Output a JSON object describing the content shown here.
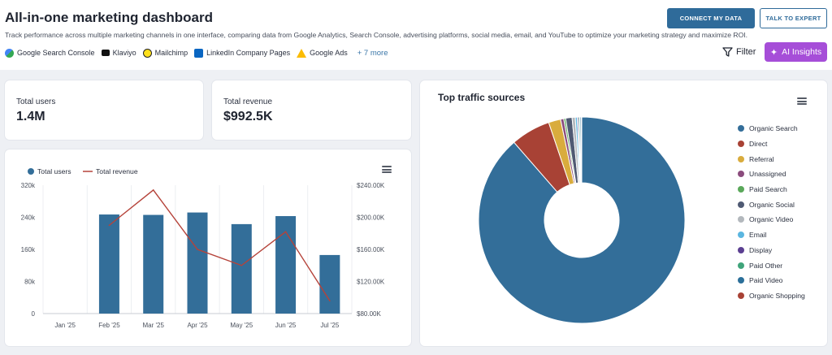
{
  "header": {
    "title": "All-in-one marketing dashboard",
    "subtitle": "Track performance across multiple marketing channels in one interface, comparing data from Google Analytics, Search Console, advertising platforms, social media, email, and YouTube to optimize your marketing strategy and maximize ROI.",
    "sources": [
      {
        "label": "Google Search Console",
        "icon": "google-search-console-icon"
      },
      {
        "label": "Klaviyo",
        "icon": "klaviyo-icon"
      },
      {
        "label": "Mailchimp",
        "icon": "mailchimp-icon"
      },
      {
        "label": "LinkedIn Company Pages",
        "icon": "linkedin-icon"
      },
      {
        "label": "Google Ads",
        "icon": "google-ads-icon"
      }
    ],
    "more_sources": "+ 7 more",
    "connect_label": "CONNECT MY DATA",
    "expert_label": "TALK TO EXPERT",
    "filter_label": "Filter",
    "ai_label": "AI Insights"
  },
  "kpis": {
    "users": {
      "label": "Total users",
      "value": "1.4M"
    },
    "revenue": {
      "label": "Total revenue",
      "value": "$992.5K"
    }
  },
  "colors": {
    "bar": "#336e99",
    "line": "#b5433a",
    "accent": "#2f6b9a",
    "ai": "#a64ed8"
  },
  "chart_data": [
    {
      "type": "bar",
      "title": "",
      "categories": [
        "Jan '25",
        "Feb '25",
        "Mar '25",
        "Apr '25",
        "May '25",
        "Jun '25",
        "Jul '25"
      ],
      "series": [
        {
          "name": "Total users",
          "type": "bar",
          "axis": "left",
          "values": [
            0,
            247000,
            246000,
            252000,
            223000,
            243000,
            146000
          ]
        },
        {
          "name": "Total revenue",
          "type": "line",
          "axis": "right",
          "values": [
            null,
            190000,
            234000,
            160000,
            140000,
            182000,
            96000
          ]
        }
      ],
      "yleft": {
        "ticks": [
          "0",
          "80k",
          "160k",
          "240k",
          "320k"
        ],
        "range": [
          0,
          320000
        ]
      },
      "yright": {
        "ticks": [
          "$80.00K",
          "$120.00K",
          "$160.00K",
          "$200.00K",
          "$240.00K"
        ],
        "range": [
          80000,
          240000
        ]
      },
      "legend": "top-left",
      "grid": "vertical"
    },
    {
      "type": "pie",
      "title": "Top traffic sources",
      "donut": true,
      "legend": "right",
      "slices": [
        {
          "name": "Organic Search",
          "value": 88.6,
          "color": "#336e99"
        },
        {
          "name": "Direct",
          "value": 6.2,
          "color": "#a84235"
        },
        {
          "name": "Referral",
          "value": 1.9,
          "color": "#d9ac3d"
        },
        {
          "name": "Unassigned",
          "value": 0.5,
          "color": "#8b4c7d"
        },
        {
          "name": "Paid Search",
          "value": 0.3,
          "color": "#5aa85a"
        },
        {
          "name": "Organic Social",
          "value": 1.0,
          "color": "#4f5a73"
        },
        {
          "name": "Organic Video",
          "value": 0.5,
          "color": "#b3b8bd"
        },
        {
          "name": "Email",
          "value": 0.3,
          "color": "#5bb6e0"
        },
        {
          "name": "Display",
          "value": 0.2,
          "color": "#5b3f91"
        },
        {
          "name": "Paid Other",
          "value": 0.2,
          "color": "#3fa47a"
        },
        {
          "name": "Paid Video",
          "value": 0.2,
          "color": "#2b6f99"
        },
        {
          "name": "Organic Shopping",
          "value": 0.1,
          "color": "#a84235"
        }
      ]
    }
  ]
}
